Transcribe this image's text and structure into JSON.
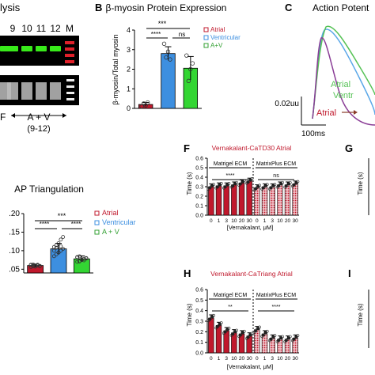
{
  "colors": {
    "atrial": "#c0182c",
    "atrial_pattern": "#d9606e",
    "ventricular": "#3d8fe0",
    "av": "#33d633",
    "gel_green": "#38ea1a",
    "gel_red": "#e0202a",
    "title_red": "#c0182c",
    "trace_blue": "#5aa7e8",
    "trace_green": "#56c256",
    "trace_purple": "#8a3d96"
  },
  "panel_a": {
    "title_fragment": "lysis",
    "lane_labels": [
      "9",
      "10",
      "11",
      "12",
      "M"
    ],
    "group_label": "A + V",
    "group_range": "(9-12)",
    "left_fragment": "F"
  },
  "panel_b": {
    "letter": "B",
    "title": "β-myosin Protein Expression",
    "ylabel": "β-myosin/Total myosin",
    "sig_top": "***",
    "sig_left": "****",
    "sig_right": "ns",
    "legend": [
      "Atrial",
      "Ventricular",
      "A+V"
    ]
  },
  "panel_c": {
    "letter": "C",
    "title": "Action Potent",
    "label_atrial": "Atrial",
    "label_atrial_right": "Atrial",
    "label_ventricular": "Ventr",
    "scale_v": "0.02uu",
    "scale_t": "100ms"
  },
  "panel_e": {
    "title": "AP Triangulation",
    "sig_top": "***",
    "sig_left": "****",
    "sig_right": "****",
    "legend": [
      "Atrial",
      "Ventricular",
      "A + V"
    ]
  },
  "panel_f": {
    "letter": "F",
    "title": "Vernakalant-CaTD30 Atrial",
    "ylabel": "Time (s)",
    "xlabel": "[Vernakalant, μM]",
    "group1": "Matrigel ECM",
    "group2": "MatrixPlus ECM",
    "sig1": "****",
    "sig2": "ns"
  },
  "panel_h": {
    "letter": "H",
    "title": "Vernakalant-CaTriang Atrial",
    "ylabel": "Time (s)",
    "xlabel": "[Vernakalant, μM]",
    "group1": "Matrigel ECM",
    "group2": "MatrixPlus ECM",
    "sig1": "**",
    "sig2": "****"
  },
  "panel_g": {
    "letter": "G",
    "ylabel": "Time (s)"
  },
  "panel_i": {
    "letter": "I",
    "ylabel": "Time (s)"
  },
  "chart_data": [
    {
      "type": "bar",
      "title": "β-myosin Protein Expression",
      "ylabel": "β-myosin/Total myosin",
      "categories": [
        "Atrial",
        "Ventricular",
        "A+V"
      ],
      "values": [
        0.2,
        2.8,
        2.05
      ],
      "errors": [
        0.1,
        0.35,
        0.6
      ],
      "ylim": [
        0,
        4
      ],
      "yticks": [
        0,
        1,
        2,
        3,
        4
      ],
      "points": [
        [
          0.1,
          0.25,
          0.15,
          0.3
        ],
        [
          3.3,
          2.6,
          2.9,
          2.5
        ],
        [
          2.7,
          1.4,
          2.0,
          2.3
        ]
      ],
      "legend_position": "right"
    },
    {
      "type": "bar",
      "title": "AP Triangulation",
      "categories": [
        "Atrial",
        "Ventricular",
        "A + V"
      ],
      "values": [
        0.06,
        0.105,
        0.078
      ],
      "errors": [
        0.004,
        0.015,
        0.008
      ],
      "ylim": [
        0.04,
        0.2
      ],
      "yticks": [
        0.05,
        0.1,
        0.15,
        0.2
      ],
      "ytick_labels": [
        ".05",
        ".10",
        ".15",
        ".20"
      ],
      "points": [
        [
          0.056,
          0.058,
          0.06,
          0.062,
          0.059,
          0.061,
          0.063,
          0.057,
          0.06,
          0.058,
          0.062,
          0.059
        ],
        [
          0.085,
          0.09,
          0.095,
          0.1,
          0.105,
          0.11,
          0.115,
          0.12,
          0.13,
          0.137,
          0.1,
          0.108,
          0.095,
          0.112
        ],
        [
          0.07,
          0.072,
          0.075,
          0.078,
          0.08,
          0.082,
          0.085,
          0.076,
          0.074,
          0.079,
          0.083,
          0.071
        ]
      ],
      "legend_position": "right"
    },
    {
      "type": "bar",
      "title": "Vernakalant-CaTD30 Atrial",
      "ylabel": "Time (s)",
      "xlabel": "[Vernakalant, μM]",
      "categories": [
        "0",
        "1",
        "3",
        "10",
        "20",
        "30",
        "0",
        "1",
        "3",
        "10",
        "20",
        "30"
      ],
      "values": [
        0.3,
        0.31,
        0.31,
        0.32,
        0.34,
        0.36,
        0.29,
        0.3,
        0.3,
        0.32,
        0.32,
        0.33
      ],
      "ylim": [
        0,
        0.6
      ],
      "yticks": [
        0,
        0.1,
        0.2,
        0.3,
        0.4,
        0.5,
        0.6
      ],
      "groups": [
        "Matrigel ECM",
        "MatrixPlus ECM"
      ]
    },
    {
      "type": "bar",
      "title": "Vernakalant-CaTriang Atrial",
      "ylabel": "Time (s)",
      "xlabel": "[Vernakalant, μM]",
      "categories": [
        "0",
        "1",
        "3",
        "10",
        "20",
        "30",
        "0",
        "1",
        "3",
        "10",
        "20",
        "30"
      ],
      "values": [
        0.33,
        0.26,
        0.21,
        0.19,
        0.18,
        0.16,
        0.22,
        0.18,
        0.14,
        0.13,
        0.13,
        0.14
      ],
      "ylim": [
        0,
        0.6
      ],
      "yticks": [
        0,
        0.1,
        0.2,
        0.3,
        0.4,
        0.5,
        0.6
      ],
      "groups": [
        "Matrigel ECM",
        "MatrixPlus ECM"
      ]
    }
  ]
}
